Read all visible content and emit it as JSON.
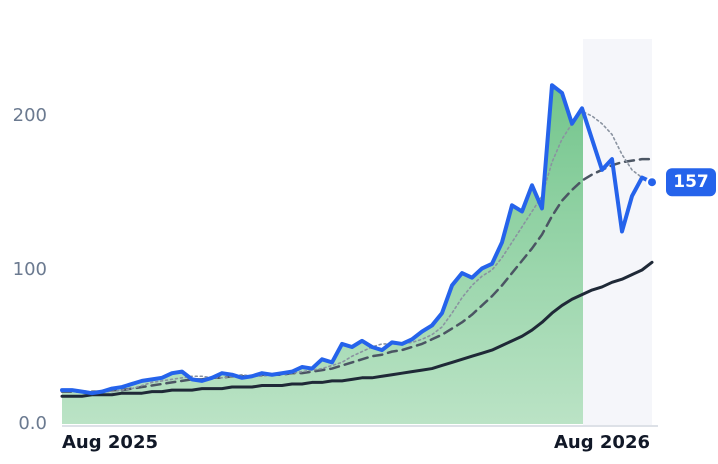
{
  "chart_data": {
    "type": "line",
    "categories": [
      "Aug 2025",
      null,
      null,
      null,
      null,
      null,
      null,
      null,
      null,
      null,
      null,
      null,
      null,
      null,
      null,
      null,
      null,
      null,
      null,
      null,
      null,
      null,
      null,
      null,
      null,
      null,
      null,
      null,
      null,
      null,
      null,
      null,
      null,
      null,
      null,
      null,
      null,
      null,
      null,
      null,
      null,
      null,
      null,
      null,
      null,
      null,
      null,
      null,
      null,
      null,
      null,
      null,
      null,
      null,
      "Aug 2026",
      null,
      null,
      null,
      null,
      null
    ],
    "series": [
      {
        "color": "#2563eb",
        "style": "solid",
        "values": [
          22,
          22,
          21,
          20,
          21,
          23,
          24,
          26,
          28,
          29,
          30,
          33,
          34,
          29,
          28,
          30,
          33,
          32,
          30,
          31,
          33,
          32,
          33,
          34,
          37,
          36,
          42,
          40,
          52,
          50,
          54,
          50,
          48,
          53,
          52,
          55,
          60,
          64,
          72,
          90,
          98,
          95,
          101,
          104,
          118,
          142,
          138,
          155,
          140,
          220,
          215,
          195,
          205,
          185,
          165,
          172,
          125,
          148,
          160,
          157
        ]
      },
      {
        "color": "#8a93a0",
        "style": "dotted",
        "values": [
          22,
          22,
          21,
          21,
          21,
          21,
          22,
          23,
          25,
          27,
          28,
          29,
          30,
          31,
          31,
          30,
          30,
          31,
          32,
          31,
          31,
          32,
          32,
          33,
          34,
          35,
          36,
          38,
          40,
          44,
          47,
          50,
          52,
          52,
          52,
          53,
          55,
          58,
          63,
          72,
          82,
          90,
          96,
          100,
          108,
          118,
          128,
          138,
          148,
          170,
          185,
          195,
          203,
          200,
          195,
          188,
          175,
          165,
          160,
          155
        ]
      },
      {
        "color": "#4b5563",
        "style": "dashed",
        "values": [
          21,
          21,
          21,
          21,
          21,
          22,
          22,
          23,
          24,
          25,
          26,
          27,
          28,
          29,
          29,
          30,
          30,
          31,
          31,
          31,
          32,
          32,
          32,
          33,
          33,
          34,
          35,
          36,
          38,
          40,
          42,
          44,
          45,
          47,
          48,
          50,
          52,
          55,
          58,
          62,
          66,
          71,
          77,
          83,
          90,
          98,
          106,
          114,
          123,
          135,
          145,
          152,
          158,
          162,
          165,
          168,
          170,
          171,
          172,
          172
        ]
      },
      {
        "color": "#1f2937",
        "style": "solid",
        "values": [
          18,
          18,
          18,
          19,
          19,
          19,
          20,
          20,
          20,
          21,
          21,
          22,
          22,
          22,
          23,
          23,
          23,
          24,
          24,
          24,
          25,
          25,
          25,
          26,
          26,
          27,
          27,
          28,
          28,
          29,
          30,
          30,
          31,
          32,
          33,
          34,
          35,
          36,
          38,
          40,
          42,
          44,
          46,
          48,
          51,
          54,
          57,
          61,
          66,
          72,
          77,
          81,
          84,
          87,
          89,
          92,
          94,
          97,
          100,
          105
        ]
      }
    ],
    "area_color": "#7cc98f",
    "ylim": [
      0,
      250
    ],
    "yticks": [
      {
        "value": 0,
        "label": "0.0"
      },
      100,
      200
    ],
    "grid": false
  }
}
